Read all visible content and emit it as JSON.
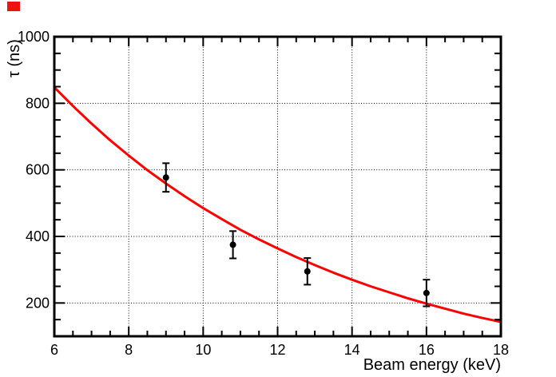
{
  "page": {
    "background": "#ffffff"
  },
  "corner_marker": {
    "color": "#ee1111"
  },
  "chart_data": {
    "type": "line",
    "title": "",
    "xlabel": "Beam energy (keV)",
    "ylabel": "τ (ns)",
    "xlim": [
      6,
      18
    ],
    "ylim": [
      100,
      1000
    ],
    "x_major_ticks": [
      6,
      8,
      10,
      12,
      14,
      16,
      18
    ],
    "x_tick_labels": [
      "6",
      "8",
      "10",
      "12",
      "14",
      "16",
      "18"
    ],
    "x_minor_step": 0.5,
    "y_major_ticks": [
      200,
      400,
      600,
      800,
      1000
    ],
    "y_tick_labels": [
      "200",
      "400",
      "600",
      "800",
      "1000"
    ],
    "y_minor_step": 50,
    "x_grid": [
      8,
      10,
      12,
      14,
      16
    ],
    "y_grid": [
      200,
      400,
      600,
      800
    ],
    "grid_style": "dotted",
    "grid_color": "#000000",
    "frame_color": "#000000",
    "legend": "none",
    "series": [
      {
        "name": "fit-curve",
        "type": "line",
        "color": "#ff0000",
        "x": [
          6,
          6.5,
          7,
          7.5,
          8,
          8.5,
          9,
          9.5,
          10,
          10.5,
          11,
          11.5,
          12,
          12.5,
          13,
          13.5,
          14,
          14.5,
          15,
          15.5,
          16,
          16.5,
          17,
          17.5,
          18
        ],
        "y": [
          848,
          792,
          739,
          689,
          643,
          599,
          559,
          521,
          485,
          452,
          420,
          391,
          364,
          338,
          314,
          291,
          270,
          250,
          232,
          214,
          198,
          183,
          168,
          155,
          143
        ]
      },
      {
        "name": "measured-points",
        "type": "scatter-errorbar",
        "marker": "filled-circle",
        "color": "#000000",
        "points": [
          {
            "x": 9.0,
            "y": 577,
            "yerr": 43
          },
          {
            "x": 10.8,
            "y": 375,
            "yerr": 41
          },
          {
            "x": 12.8,
            "y": 295,
            "yerr": 40
          },
          {
            "x": 16.0,
            "y": 230,
            "yerr": 40
          }
        ]
      }
    ]
  }
}
